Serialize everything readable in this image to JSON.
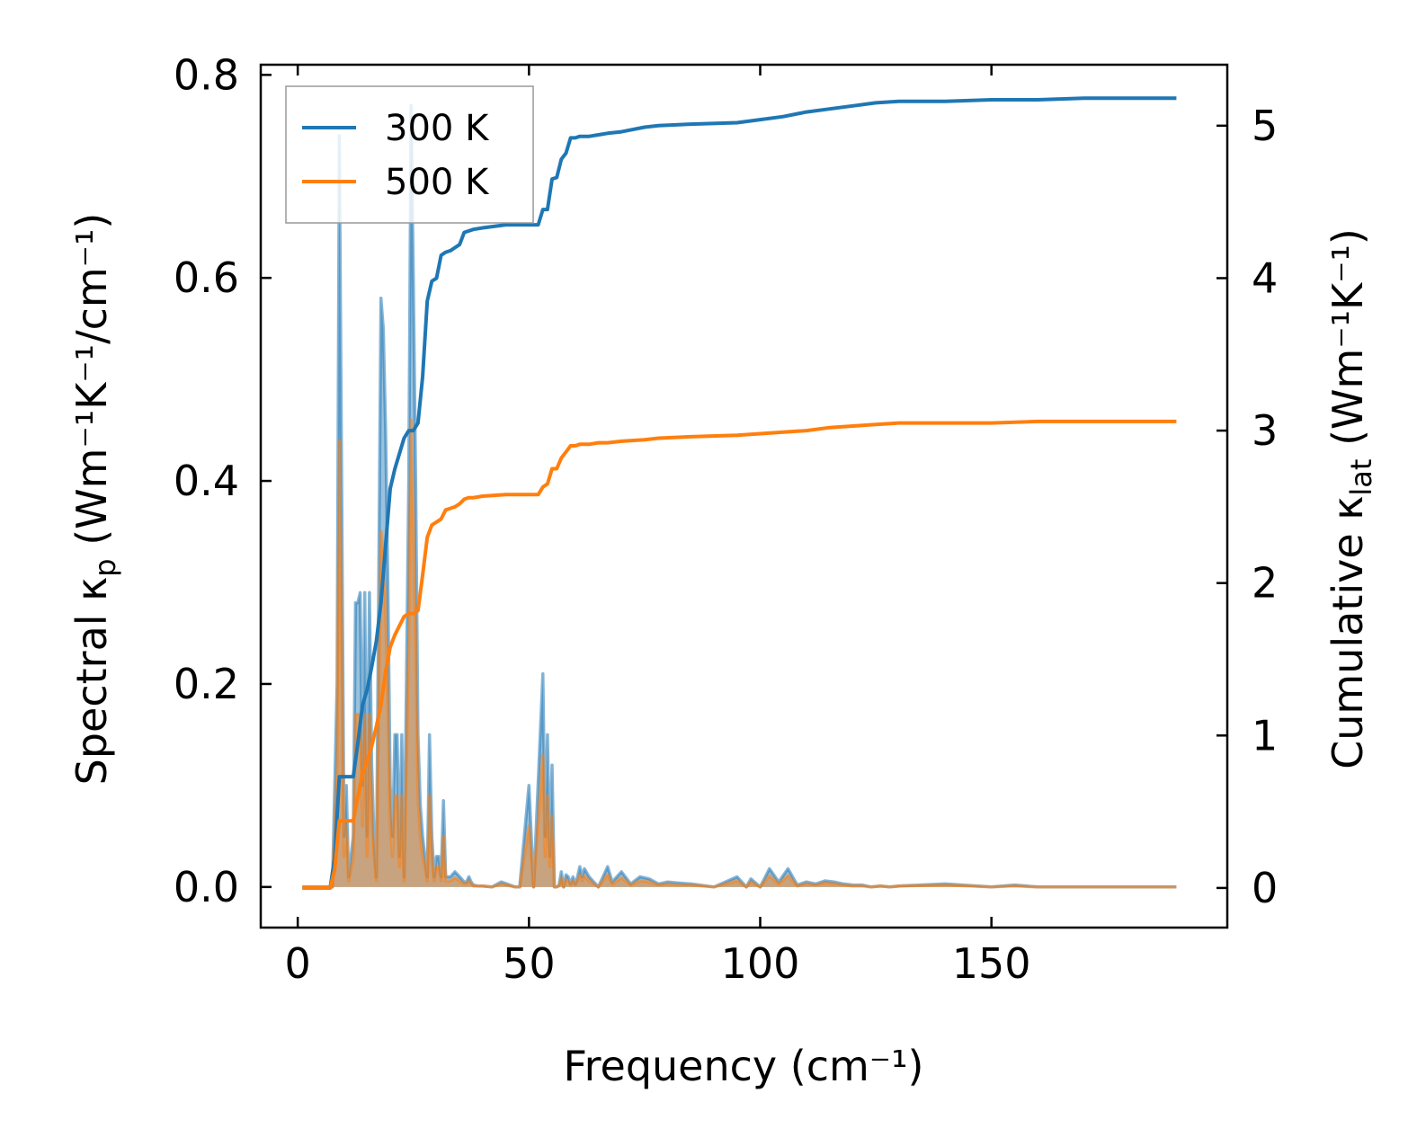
{
  "chart_data": {
    "type": "line",
    "xlabel": "Frequency (cm⁻¹)",
    "ylabel_left": {
      "pre": "Spectral κ",
      "sub": "p",
      "post": " (Wm⁻¹K⁻¹/cm⁻¹)"
    },
    "ylabel_right": {
      "pre": "Cumulative κ",
      "sub": "lat",
      "post": " (Wm⁻¹K⁻¹)"
    },
    "xlim": [
      -8,
      201
    ],
    "ylim_left": [
      -0.04,
      0.81
    ],
    "ylim_right": [
      -0.26,
      5.4
    ],
    "xticks": [
      0,
      50,
      100,
      150
    ],
    "yticks_left": [
      0.0,
      0.2,
      0.4,
      0.6,
      0.8
    ],
    "yticks_left_labels": [
      "0.0",
      "0.2",
      "0.4",
      "0.6",
      "0.8"
    ],
    "yticks_right": [
      0,
      1,
      2,
      3,
      4,
      5
    ],
    "yticks_right_labels": [
      "0",
      "1",
      "2",
      "3",
      "4",
      "5"
    ],
    "legend_position": "top-left",
    "series": [
      {
        "name": "300 K",
        "color": "#1f77b4",
        "axis": "right",
        "kind": "cumulative",
        "x": [
          1,
          7,
          8,
          9,
          12,
          13,
          14,
          15,
          16,
          17,
          18,
          19,
          20,
          21,
          22,
          23,
          24,
          25,
          26,
          27,
          28,
          29,
          30,
          31,
          32,
          33,
          34,
          35,
          36,
          37,
          38,
          40,
          45,
          50,
          52,
          53,
          54,
          55,
          56,
          57,
          58,
          59,
          60,
          61,
          63,
          65,
          67,
          70,
          75,
          78,
          85,
          95,
          100,
          105,
          110,
          115,
          120,
          125,
          130,
          140,
          150,
          160,
          170,
          180,
          190
        ],
        "y": [
          0,
          0,
          0.2,
          0.73,
          0.73,
          0.95,
          1.2,
          1.3,
          1.45,
          1.62,
          1.87,
          2.25,
          2.62,
          2.75,
          2.85,
          2.95,
          3.0,
          3.0,
          3.05,
          3.35,
          3.85,
          3.98,
          4.0,
          4.15,
          4.17,
          4.18,
          4.2,
          4.22,
          4.3,
          4.31,
          4.32,
          4.33,
          4.35,
          4.35,
          4.35,
          4.45,
          4.45,
          4.65,
          4.66,
          4.78,
          4.82,
          4.92,
          4.92,
          4.93,
          4.93,
          4.94,
          4.95,
          4.96,
          4.99,
          5.0,
          5.01,
          5.02,
          5.04,
          5.06,
          5.09,
          5.11,
          5.13,
          5.15,
          5.16,
          5.16,
          5.17,
          5.17,
          5.18,
          5.18,
          5.18
        ]
      },
      {
        "name": "500 K",
        "color": "#ff7f0e",
        "axis": "right",
        "kind": "cumulative",
        "x": [
          1,
          7,
          8,
          9,
          12,
          13,
          14,
          15,
          16,
          17,
          18,
          19,
          20,
          21,
          22,
          23,
          24,
          25,
          26,
          27,
          28,
          29,
          30,
          31,
          32,
          33,
          34,
          35,
          36,
          37,
          38,
          40,
          45,
          50,
          52,
          53,
          54,
          55,
          56,
          57,
          58,
          59,
          60,
          61,
          63,
          65,
          67,
          70,
          75,
          78,
          85,
          95,
          100,
          105,
          110,
          115,
          120,
          125,
          130,
          140,
          150,
          160,
          170,
          180,
          190
        ],
        "y": [
          0,
          0,
          0.12,
          0.44,
          0.44,
          0.6,
          0.75,
          0.83,
          0.93,
          1.06,
          1.2,
          1.42,
          1.58,
          1.66,
          1.72,
          1.78,
          1.8,
          1.8,
          1.82,
          2.05,
          2.3,
          2.38,
          2.4,
          2.42,
          2.48,
          2.49,
          2.5,
          2.52,
          2.55,
          2.56,
          2.56,
          2.57,
          2.58,
          2.58,
          2.58,
          2.63,
          2.65,
          2.75,
          2.75,
          2.82,
          2.86,
          2.9,
          2.9,
          2.91,
          2.91,
          2.92,
          2.92,
          2.93,
          2.94,
          2.95,
          2.96,
          2.97,
          2.98,
          2.99,
          3.0,
          3.02,
          3.03,
          3.04,
          3.05,
          3.05,
          3.05,
          3.06,
          3.06,
          3.06,
          3.06
        ]
      },
      {
        "name": "",
        "color": "#1f77b4",
        "axis": "left",
        "kind": "spectral",
        "x": [
          1,
          7,
          7.5,
          8.5,
          9,
          9.5,
          10,
          10.5,
          11,
          12,
          12.5,
          13,
          13.5,
          14,
          14.5,
          15,
          15.5,
          16,
          16.5,
          17,
          17.5,
          18,
          18.5,
          19,
          19.5,
          20,
          20.5,
          21,
          21.5,
          22,
          22.5,
          23,
          23.5,
          24,
          24.5,
          25,
          25.5,
          26,
          26.5,
          27,
          27.5,
          28,
          28.5,
          29,
          29.5,
          30,
          30.5,
          31,
          31.5,
          32,
          32.5,
          33,
          34,
          35,
          36,
          36.5,
          37,
          37.5,
          38,
          39,
          40,
          42,
          44,
          47,
          48,
          50,
          51,
          53,
          53.5,
          54,
          54.5,
          55,
          55.5,
          56,
          56.5,
          57,
          57.5,
          58,
          58.5,
          59,
          59.5,
          60,
          60.5,
          61,
          61.5,
          62,
          63,
          65,
          67,
          68,
          70,
          72,
          74,
          76,
          78,
          80,
          82,
          85,
          90,
          95,
          97,
          98,
          100,
          102,
          104,
          106,
          108,
          110,
          112,
          114,
          116,
          118,
          120,
          122,
          124,
          126,
          128,
          130,
          140,
          150,
          155,
          160,
          170,
          180,
          190
        ],
        "y": [
          0,
          0,
          0,
          0.2,
          0.74,
          0.4,
          0.05,
          0.1,
          0.01,
          0.05,
          0.28,
          0.28,
          0.29,
          0.1,
          0.29,
          0.05,
          0.29,
          0.12,
          0.05,
          0.01,
          0.3,
          0.58,
          0.55,
          0.45,
          0.3,
          0.1,
          0.05,
          0.15,
          0.15,
          0.03,
          0.15,
          0.01,
          0.2,
          0.4,
          0.77,
          0.6,
          0.4,
          0.15,
          0.08,
          0.05,
          0.03,
          0.01,
          0.15,
          0.05,
          0.01,
          0.03,
          0.03,
          0.01,
          0.085,
          0.01,
          0.01,
          0.01,
          0.015,
          0.01,
          0.005,
          0.005,
          0.01,
          0.005,
          0.002,
          0.001,
          0.001,
          0.0,
          0.005,
          0.0,
          0.0,
          0.1,
          0.0,
          0.21,
          0.05,
          0.15,
          0.03,
          0.12,
          0.0,
          0.0,
          0.002,
          0.015,
          0.0,
          0.012,
          0.01,
          0.003,
          0.01,
          0.003,
          0.01,
          0.02,
          0.01,
          0.018,
          0.01,
          0.0,
          0.02,
          0.005,
          0.015,
          0.003,
          0.01,
          0.008,
          0.003,
          0.005,
          0.004,
          0.003,
          0.0,
          0.01,
          0.0,
          0.008,
          0.0,
          0.018,
          0.005,
          0.018,
          0.002,
          0.005,
          0.003,
          0.006,
          0.005,
          0.003,
          0.002,
          0.002,
          0.0,
          0.001,
          0.0,
          0.001,
          0.003,
          0.0,
          0.002,
          0.0,
          0.0,
          0.0,
          0.0
        ]
      },
      {
        "name": "",
        "color": "#ff7f0e",
        "axis": "left",
        "kind": "spectral",
        "x": [
          1,
          7,
          7.5,
          8.5,
          9,
          9.5,
          10,
          10.5,
          11,
          12,
          12.5,
          13,
          13.5,
          14,
          14.5,
          15,
          15.5,
          16,
          16.5,
          17,
          17.5,
          18,
          18.5,
          19,
          19.5,
          20,
          20.5,
          21,
          21.5,
          22,
          22.5,
          23,
          23.5,
          24,
          24.5,
          25,
          25.5,
          26,
          26.5,
          27,
          27.5,
          28,
          28.5,
          29,
          29.5,
          30,
          30.5,
          31,
          31.5,
          32,
          32.5,
          33,
          34,
          35,
          36,
          36.5,
          37,
          37.5,
          38,
          39,
          40,
          42,
          44,
          47,
          48,
          50,
          51,
          53,
          53.5,
          54,
          54.5,
          55,
          55.5,
          56,
          56.5,
          57,
          57.5,
          58,
          58.5,
          59,
          59.5,
          60,
          60.5,
          61,
          61.5,
          62,
          63,
          65,
          67,
          68,
          70,
          72,
          74,
          76,
          78,
          80,
          82,
          85,
          90,
          95,
          97,
          98,
          100,
          102,
          104,
          106,
          108,
          110,
          112,
          114,
          116,
          118,
          120,
          122,
          124,
          126,
          128,
          130,
          140,
          150,
          155,
          160,
          170,
          180,
          190
        ],
        "y": [
          0,
          0,
          0,
          0.12,
          0.44,
          0.24,
          0.03,
          0.06,
          0.006,
          0.03,
          0.17,
          0.17,
          0.17,
          0.06,
          0.17,
          0.03,
          0.17,
          0.07,
          0.03,
          0.006,
          0.18,
          0.35,
          0.33,
          0.27,
          0.18,
          0.06,
          0.03,
          0.09,
          0.09,
          0.02,
          0.09,
          0.006,
          0.12,
          0.24,
          0.46,
          0.36,
          0.24,
          0.09,
          0.05,
          0.03,
          0.02,
          0.006,
          0.09,
          0.03,
          0.006,
          0.02,
          0.02,
          0.006,
          0.05,
          0.006,
          0.006,
          0.006,
          0.009,
          0.006,
          0.003,
          0.003,
          0.006,
          0.003,
          0.001,
          0.001,
          0.001,
          0.0,
          0.003,
          0.0,
          0.0,
          0.06,
          0.0,
          0.13,
          0.03,
          0.09,
          0.02,
          0.07,
          0.0,
          0.0,
          0.001,
          0.009,
          0.0,
          0.007,
          0.006,
          0.002,
          0.006,
          0.002,
          0.006,
          0.012,
          0.006,
          0.011,
          0.006,
          0.0,
          0.012,
          0.003,
          0.009,
          0.002,
          0.006,
          0.005,
          0.002,
          0.003,
          0.002,
          0.002,
          0.0,
          0.006,
          0.0,
          0.005,
          0.0,
          0.011,
          0.003,
          0.011,
          0.001,
          0.003,
          0.002,
          0.004,
          0.003,
          0.002,
          0.001,
          0.001,
          0.0,
          0.001,
          0.0,
          0.001,
          0.002,
          0.0,
          0.001,
          0.0,
          0.0,
          0.0,
          0.0
        ]
      }
    ]
  }
}
